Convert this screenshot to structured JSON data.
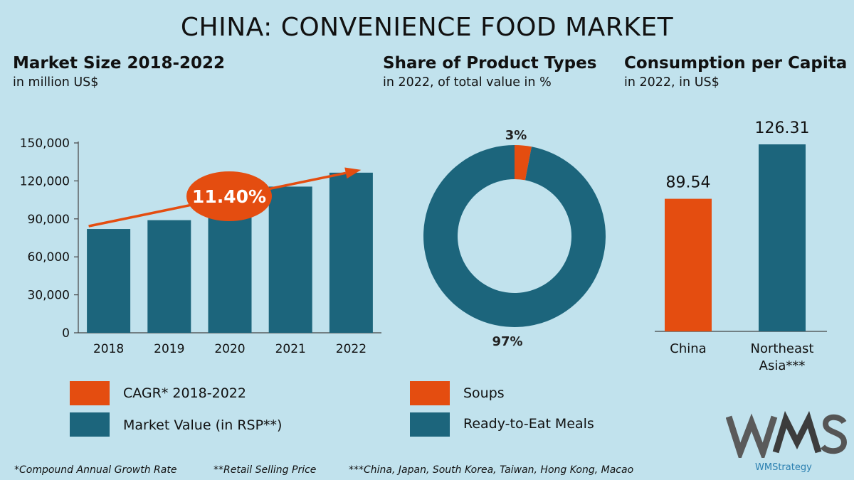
{
  "title": "CHINA: CONVENIENCE FOOD MARKET",
  "colors": {
    "background": "#c1e2ed",
    "orange": "#e44d10",
    "teal": "#1c657c",
    "axis": "#444444"
  },
  "sections": {
    "market_size": {
      "title": "Market Size 2018-2022",
      "subtitle": "in million US$"
    },
    "share": {
      "title": "Share of Product Types",
      "subtitle": "in 2022, of total value in %"
    },
    "per_capita": {
      "title": "Consumption per Capita",
      "subtitle": "in 2022, in US$"
    }
  },
  "chart_data": [
    {
      "type": "bar",
      "categories": [
        "2018",
        "2019",
        "2020",
        "2021",
        "2022"
      ],
      "series": [
        {
          "name": "Market Value (in RSP**)",
          "values": [
            82000,
            89000,
            100000,
            115500,
            126500
          ]
        }
      ],
      "ylim": [
        0,
        150000
      ],
      "yticks": [
        0,
        30000,
        60000,
        90000,
        120000,
        150000
      ],
      "ytick_labels": [
        "0",
        "30,000",
        "60,000",
        "90,000",
        "120,000",
        "150,000"
      ],
      "annotation": {
        "label": "11.40%",
        "meaning": "CAGR* 2018-2022"
      },
      "grid": false
    },
    {
      "type": "pie",
      "style": "donut",
      "slices": [
        {
          "name": "Soups",
          "value": 3,
          "label": "3%"
        },
        {
          "name": "Ready-to-Eat Meals",
          "value": 97,
          "label": "97%"
        }
      ]
    },
    {
      "type": "bar",
      "categories": [
        "China",
        "Northeast Asia***"
      ],
      "category_lines": [
        [
          "China"
        ],
        [
          "Northeast",
          "Asia***"
        ]
      ],
      "values": [
        89.54,
        126.31
      ],
      "value_labels": [
        "89.54",
        "126.31"
      ],
      "bar_colors": [
        "orange",
        "teal"
      ]
    }
  ],
  "legend_left": [
    {
      "label": "CAGR* 2018-2022",
      "color": "orange"
    },
    {
      "label": "Market Value (in RSP**)",
      "color": "teal"
    }
  ],
  "legend_right": [
    {
      "label": "Soups",
      "color": "orange"
    },
    {
      "label": "Ready-to-Eat Meals",
      "color": "teal"
    }
  ],
  "footnotes": {
    "f1": "*Compound Annual Growth Rate",
    "f2": "**Retail Selling Price",
    "f3": "***China, Japan, South Korea, Taiwan, Hong Kong, Macao"
  },
  "logo": {
    "text": "WMS",
    "sub": "WMStrategy"
  }
}
